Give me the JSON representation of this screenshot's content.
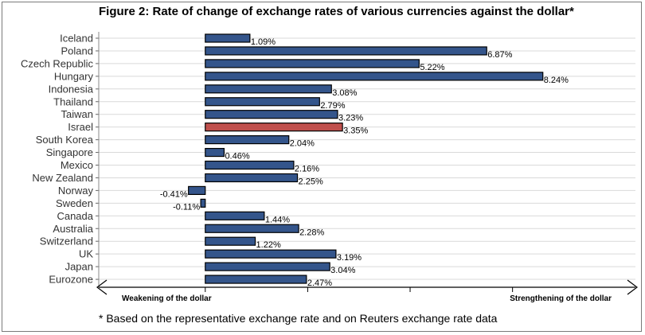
{
  "chart_data": {
    "type": "bar",
    "orientation": "horizontal",
    "title": "Figure 2: Rate of change of exchange rates of various currencies against the dollar*",
    "categories": [
      "Iceland",
      "Poland",
      "Czech Republic",
      "Hungary",
      "Indonesia",
      "Thailand",
      "Taiwan",
      "Israel",
      "South Korea",
      "Singapore",
      "Mexico",
      "New Zealand",
      "Norway",
      "Sweden",
      "Canada",
      "Australia",
      "Switzerland",
      "UK",
      "Japan",
      "Eurozone"
    ],
    "values": [
      1.09,
      6.87,
      5.22,
      8.24,
      3.08,
      2.79,
      3.23,
      3.35,
      2.04,
      0.46,
      2.16,
      2.25,
      -0.41,
      -0.11,
      1.44,
      2.28,
      1.22,
      3.19,
      3.04,
      2.47
    ],
    "data_labels": [
      "1.09%",
      "6.87%",
      "5.22%",
      "8.24%",
      "3.08%",
      "2.79%",
      "3.23%",
      "3.35%",
      "2.04%",
      "0.46%",
      "2.16%",
      "2.25%",
      "-0.41%",
      "-0.11%",
      "1.44%",
      "2.28%",
      "1.22%",
      "3.19%",
      "3.04%",
      "2.47%"
    ],
    "highlight_category": "Israel",
    "xlim": [
      -2.6,
      10.5
    ],
    "x_ticks": [
      0,
      2.5,
      5,
      7.5
    ],
    "axis_left_label": "Weakening of the dollar",
    "axis_right_label": "Strengthening of the dollar",
    "grid": "horizontal",
    "colors": {
      "bar": "#34558b",
      "highlight": "#c0504d",
      "grid": "#d9d9d9"
    }
  },
  "footnote": "* Based on the representative exchange rate and on Reuters exchange rate data"
}
